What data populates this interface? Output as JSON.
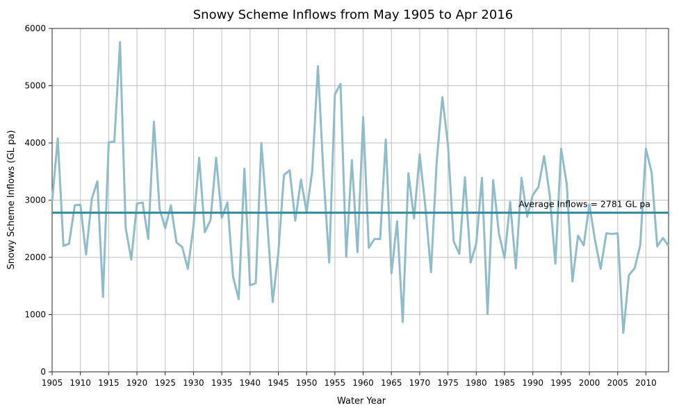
{
  "chart_data": {
    "type": "line",
    "title": "Snowy Scheme Inflows from May 1905 to Apr 2016",
    "xlabel": "Water Year",
    "ylabel": "Snowy Scheme Inflows (GL pa)",
    "xlim": [
      1905,
      2014
    ],
    "ylim": [
      0,
      6000
    ],
    "xticks": [
      1905,
      1910,
      1915,
      1920,
      1925,
      1930,
      1935,
      1940,
      1945,
      1950,
      1955,
      1960,
      1965,
      1970,
      1975,
      1980,
      1985,
      1990,
      1995,
      2000,
      2005,
      2010
    ],
    "yticks": [
      0,
      1000,
      2000,
      3000,
      4000,
      5000,
      6000
    ],
    "grid": true,
    "series": [
      {
        "color": "#8fbccb",
        "x": [
          1905,
          1906,
          1907,
          1908,
          1909,
          1910,
          1911,
          1912,
          1913,
          1914,
          1915,
          1916,
          1917,
          1918,
          1919,
          1920,
          1921,
          1922,
          1923,
          1924,
          1925,
          1926,
          1927,
          1928,
          1929,
          1930,
          1931,
          1932,
          1933,
          1934,
          1935,
          1936,
          1937,
          1938,
          1939,
          1940,
          1941,
          1942,
          1943,
          1944,
          1945,
          1946,
          1947,
          1948,
          1949,
          1950,
          1951,
          1952,
          1953,
          1954,
          1955,
          1956,
          1957,
          1958,
          1959,
          1960,
          1961,
          1962,
          1963,
          1964,
          1965,
          1966,
          1967,
          1968,
          1969,
          1970,
          1971,
          1972,
          1973,
          1974,
          1975,
          1976,
          1977,
          1978,
          1979,
          1980,
          1981,
          1982,
          1983,
          1984,
          1985,
          1986,
          1987,
          1988,
          1989,
          1990,
          1991,
          1992,
          1993,
          1994,
          1995,
          1996,
          1997,
          1998,
          1999,
          2000,
          2001,
          2002,
          2003,
          2004,
          2005,
          2006,
          2007,
          2008,
          2009,
          2010,
          2011,
          2012,
          2013,
          2014
        ],
        "y": [
          2980,
          4080,
          2200,
          2240,
          2910,
          2920,
          2050,
          3020,
          3330,
          1310,
          4010,
          4020,
          5760,
          2520,
          1960,
          2940,
          2960,
          2320,
          4370,
          2850,
          2510,
          2910,
          2260,
          2180,
          1800,
          2540,
          3740,
          2440,
          2650,
          3740,
          2690,
          2960,
          1660,
          1270,
          3550,
          1510,
          1550,
          4000,
          2690,
          1220,
          2080,
          3440,
          3520,
          2640,
          3360,
          2790,
          3510,
          5340,
          3420,
          1910,
          4850,
          5030,
          2010,
          3700,
          2090,
          4450,
          2170,
          2320,
          2320,
          4060,
          1720,
          2630,
          870,
          3470,
          2680,
          3800,
          2880,
          1740,
          3680,
          4800,
          3970,
          2280,
          2060,
          3400,
          1910,
          2240,
          3390,
          1010,
          3350,
          2420,
          1990,
          2970,
          1810,
          3390,
          2710,
          3090,
          3230,
          3770,
          3080,
          1890,
          3900,
          3280,
          1580,
          2380,
          2210,
          2930,
          2300,
          1800,
          2420,
          2410,
          2420,
          680,
          1690,
          1810,
          2210,
          3900,
          3490,
          2190,
          2340,
          2200
        ]
      },
      {
        "color": "#2e8b9f",
        "x": [
          1905,
          2014
        ],
        "y": [
          2781,
          2781
        ]
      }
    ],
    "annotations": [
      {
        "text": "Average Inflows = 2781 GL pa",
        "x": 1987.5,
        "y": 2781
      }
    ]
  }
}
